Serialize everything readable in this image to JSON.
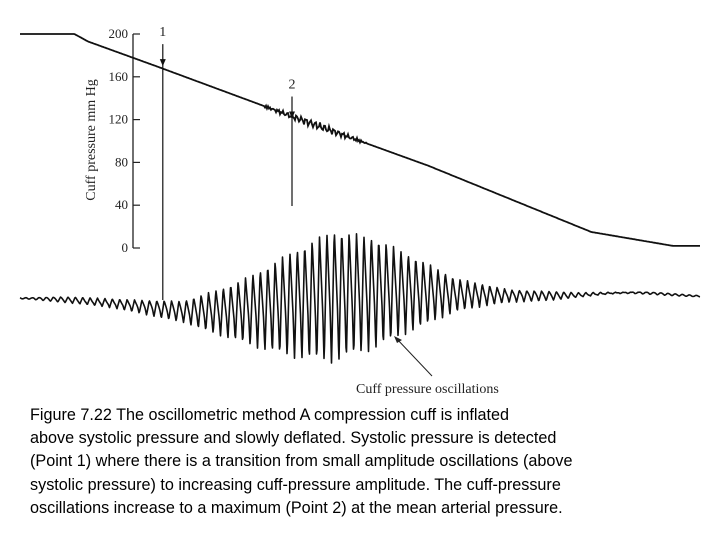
{
  "chart_data": {
    "type": "line",
    "ylabel": "Cuff pressure mm Hg",
    "y_ticks": [
      "200",
      "160",
      "120",
      "80",
      "40",
      "0"
    ],
    "y_tick_values": [
      200,
      160,
      120,
      80,
      40,
      0
    ],
    "ylim": [
      0,
      200
    ],
    "x_ticks": [],
    "grid": false,
    "series": [
      {
        "name": "",
        "role": "cuff pressure",
        "x": [
          0,
          8,
          10,
          20,
          40,
          60,
          84,
          96,
          100
        ],
        "y": [
          200,
          200,
          193,
          170,
          123,
          77,
          15,
          2,
          2
        ]
      },
      {
        "name": "",
        "role": "cuff pressure oscillations",
        "x": [
          0,
          10,
          24,
          32,
          40,
          46,
          52,
          58,
          64,
          72,
          82,
          100
        ],
        "y": [
          0,
          0.05,
          0.15,
          0.45,
          0.8,
          1.0,
          0.85,
          0.55,
          0.25,
          0.1,
          0.03,
          0
        ]
      }
    ],
    "points": [
      {
        "label": "1",
        "x": 21,
        "y": 170
      },
      {
        "label": "2",
        "x": 40,
        "y": 121
      }
    ],
    "annotations": [
      "Cuff pressure oscillations"
    ]
  },
  "caption": {
    "lines": [
      "Figure 7.22   The oscillometric method   A compression cuff is inflated",
      "above systolic pressure and slowly deflated. Systolic pressure is detected",
      "(Point 1) where there is a transition from small amplitude oscillations (above",
      "systolic pressure) to increasing cuff-pressure amplitude. The cuff-pressure",
      "oscillations increase to a maximum (Point 2) at the mean arterial pressure."
    ]
  }
}
